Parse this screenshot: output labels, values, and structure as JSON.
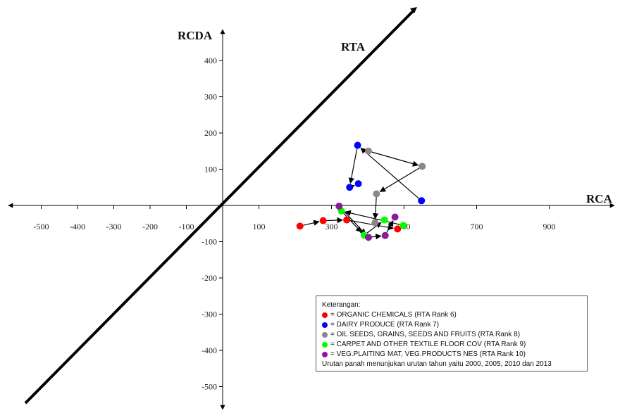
{
  "chart_data": {
    "type": "scatter",
    "title": "",
    "xlabel": "RCA",
    "ylabel": "RCDA",
    "diagonal_label": "RTA",
    "xlim": [
      -590,
      1050
    ],
    "ylim": [
      -590,
      560
    ],
    "x_ticks": [
      -500,
      -400,
      -300,
      -200,
      -100,
      100,
      300,
      500,
      700,
      900
    ],
    "y_ticks": [
      400,
      300,
      200,
      100,
      -100,
      -200,
      -300,
      -400,
      -500
    ],
    "grid": false,
    "legend_placement": "bottom-right",
    "series": [
      {
        "name": "= ORGANIC CHEMICALS (RTA Rank 6)",
        "color": "#ff0000",
        "points": [
          [
            213,
            -57
          ],
          [
            277,
            -42
          ],
          [
            342,
            -40
          ],
          [
            482,
            -65
          ]
        ]
      },
      {
        "name": "= DAIRY PRODUCE (RTA Rank 7)",
        "color": "#0000ff",
        "points": [
          [
            548,
            13
          ],
          [
            372,
            166
          ],
          [
            350,
            50
          ],
          [
            374,
            60
          ]
        ]
      },
      {
        "name": "= OIL SEEDS, GRAINS, SEEDS AND FRUITS (RTA Rank 8)",
        "color": "#888888",
        "points": [
          [
            402,
            150
          ],
          [
            550,
            108
          ],
          [
            424,
            32
          ],
          [
            420,
            -48
          ]
        ]
      },
      {
        "name": "= CARPET AND OTHER TEXTILE FLOOR COV (RTA Rank 9)",
        "color": "#00ff00",
        "points": [
          [
            498,
            -55
          ],
          [
            327,
            -15
          ],
          [
            390,
            -82
          ],
          [
            446,
            -40
          ]
        ]
      },
      {
        "name": "= VEG.PLAITING MAT, VEG.PRODUCTS NES (RTA Rank 10)",
        "color": "#8b1a9a",
        "points": [
          [
            321,
            -2
          ],
          [
            402,
            -88
          ],
          [
            448,
            -83
          ],
          [
            475,
            -32
          ]
        ]
      }
    ],
    "legend_title": "Keterangan:",
    "legend_note": "Urutan panah menunjukan urutan tahun yaitu 2000, 2005, 2010 dan 2013"
  }
}
